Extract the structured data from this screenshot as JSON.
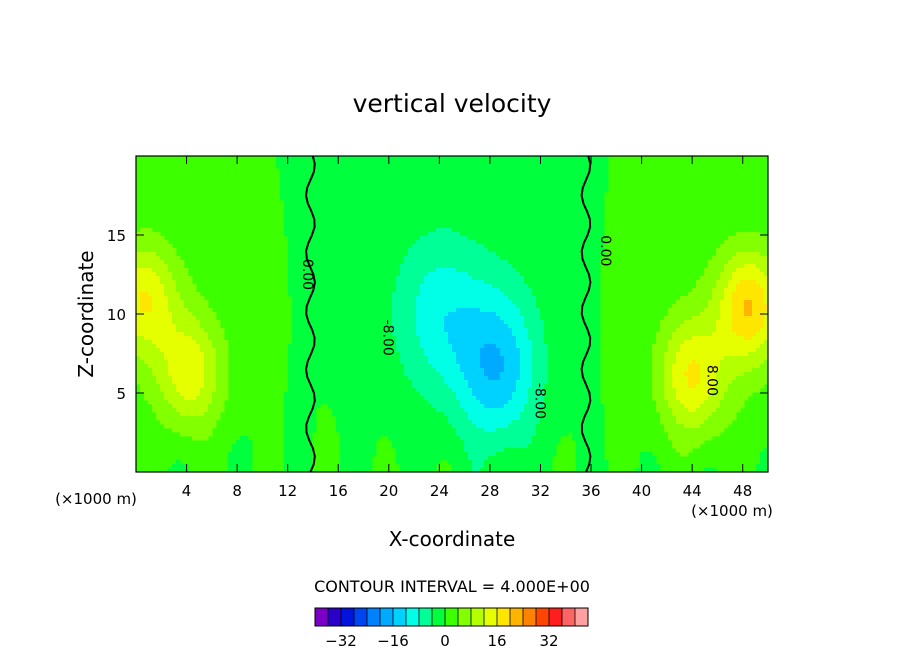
{
  "chart_data": {
    "type": "heatmap",
    "title": "vertical velocity",
    "xlabel": "X-coordinate",
    "ylabel": "Z-coordinate",
    "x_unit_left": "(×1000 m)",
    "x_unit_right": "(×1000 m)",
    "xlim": [
      0,
      50
    ],
    "ylim": [
      0,
      20
    ],
    "x_ticks": [
      4,
      8,
      12,
      16,
      20,
      24,
      28,
      32,
      36,
      40,
      44,
      48
    ],
    "y_ticks": [
      5,
      10,
      15
    ],
    "contour_interval_text": "CONTOUR INTERVAL = 4.000E+00",
    "contour_interval": 4,
    "contour_labels": [
      {
        "text": "0.00",
        "x": 13.2,
        "y": 12.5
      },
      {
        "text": "-8.00",
        "x": 19.6,
        "y": 8.5
      },
      {
        "text": "-8.00",
        "x": 31.6,
        "y": 4.5
      },
      {
        "text": "0.00",
        "x": 36.8,
        "y": 14.0
      },
      {
        "text": "8.00",
        "x": 45.2,
        "y": 5.8
      }
    ],
    "colorbar": {
      "levels": [
        -36,
        -32,
        -28,
        -24,
        -20,
        -16,
        -12,
        -8,
        -4,
        0,
        4,
        8,
        12,
        16,
        20,
        24,
        28,
        32,
        36
      ],
      "colors": [
        "#7a00c8",
        "#2a00c8",
        "#0014dc",
        "#0046f0",
        "#0082ff",
        "#00aaff",
        "#00d2ff",
        "#00ffe6",
        "#00ff96",
        "#00ff3c",
        "#3cff00",
        "#82ff00",
        "#b4ff00",
        "#e6ff00",
        "#ffe600",
        "#ffb400",
        "#ff8200",
        "#ff4600",
        "#ff1e1e",
        "#ff6464",
        "#ffa0a0"
      ],
      "tick_labels": [
        "-32",
        "-16",
        "0",
        "16",
        "32"
      ],
      "tick_values": [
        -32,
        -16,
        0,
        16,
        32
      ]
    },
    "features": [
      {
        "kind": "updraft",
        "x": 0.6,
        "z": 11.0,
        "peak": 14
      },
      {
        "kind": "updraft",
        "x": 4.3,
        "z": 6.2,
        "peak": 13
      },
      {
        "kind": "updraft",
        "x": 44.0,
        "z": 6.0,
        "peak": 14
      },
      {
        "kind": "updraft",
        "x": 48.6,
        "z": 10.5,
        "peak": 18
      },
      {
        "kind": "downdraft",
        "x": 28.6,
        "z": 6.5,
        "peak": -14
      },
      {
        "kind": "downdraft",
        "x": 24.0,
        "z": 10.0,
        "peak": -7
      }
    ]
  }
}
